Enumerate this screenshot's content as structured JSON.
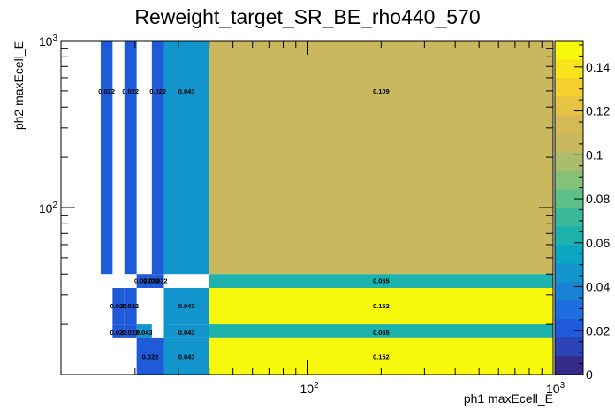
{
  "chart_data": {
    "type": "heatmap",
    "title": "Reweight_target_SR_BE_rho440_570",
    "xlabel": "ph1 maxEcell_E",
    "ylabel": "ph2 maxEcell_E",
    "x_scale": "log",
    "y_scale": "log",
    "xlim": [
      10,
      1000
    ],
    "ylim": [
      10,
      1000
    ],
    "zlim": [
      0,
      0.152
    ],
    "x_ticks": [
      {
        "value": 100,
        "base": "10",
        "exp": "2"
      },
      {
        "value": 1000,
        "base": "10",
        "exp": "3"
      }
    ],
    "y_ticks": [
      {
        "value": 100,
        "base": "10",
        "exp": "2"
      },
      {
        "value": 1000,
        "base": "10",
        "exp": "3"
      }
    ],
    "palette": [
      "#352a87",
      "#2d44b6",
      "#1f5ad8",
      "#1f6ee0",
      "#1a82d4",
      "#1295cd",
      "#0aa6c2",
      "#1eb2ad",
      "#3aba9a",
      "#5fbf89",
      "#86c17a",
      "#aabd6d",
      "#c9b85e",
      "#d5b954",
      "#e6c443",
      "#f4d12f",
      "#f9e31d",
      "#f8f80d"
    ],
    "colorbar_ticks": [
      0,
      0.02,
      0.04,
      0.06,
      0.08,
      0.1,
      0.12,
      0.14
    ],
    "cells": [
      {
        "x": [
          14.5,
          16.2
        ],
        "y": [
          40,
          1000
        ],
        "z": 0.022,
        "label": "0.022",
        "ly": 500
      },
      {
        "x": [
          18.1,
          20.3
        ],
        "y": [
          40,
          1000
        ],
        "z": 0.022,
        "label": "0.022",
        "ly": 500
      },
      {
        "x": [
          23.4,
          26.2
        ],
        "y": [
          40,
          1000
        ],
        "z": 0.022,
        "label": "0.022",
        "ly": 500
      },
      {
        "x": [
          26.2,
          40.0
        ],
        "y": [
          40,
          1000
        ],
        "z": 0.043,
        "label": "0.043",
        "ly": 500
      },
      {
        "x": [
          40.0,
          1000
        ],
        "y": [
          40,
          1000
        ],
        "z": 0.109,
        "label": "0.109",
        "ly": 500
      },
      {
        "x": [
          20.3,
          22.7
        ],
        "y": [
          33,
          40
        ],
        "z": 0.022,
        "label": "0.022",
        "ly": 36.5
      },
      {
        "x": [
          22.7,
          24.0
        ],
        "y": [
          33,
          40
        ],
        "z": 0.022,
        "label": "0.022",
        "ly": 36.5
      },
      {
        "x": [
          24.0,
          26.2
        ],
        "y": [
          33,
          40
        ],
        "z": 0.022,
        "label": "0.022",
        "ly": 36.5
      },
      {
        "x": [
          40.0,
          1000
        ],
        "y": [
          33,
          40
        ],
        "z": 0.065,
        "label": "0.065",
        "ly": 36.5
      },
      {
        "x": [
          16.2,
          18.1
        ],
        "y": [
          20,
          33
        ],
        "z": 0.022,
        "label": "0.022",
        "ly": 25.8
      },
      {
        "x": [
          18.1,
          20.3
        ],
        "y": [
          20,
          33
        ],
        "z": 0.022,
        "label": "0.022",
        "ly": 25.8
      },
      {
        "x": [
          26.2,
          40.0
        ],
        "y": [
          20,
          33
        ],
        "z": 0.043,
        "label": "0.043",
        "ly": 25.8
      },
      {
        "x": [
          40.0,
          1000
        ],
        "y": [
          20,
          33
        ],
        "z": 0.152,
        "label": "0.152",
        "ly": 25.8
      },
      {
        "x": [
          16.2,
          18.1
        ],
        "y": [
          16.5,
          20
        ],
        "z": 0.022,
        "label": "0.022",
        "ly": 18
      },
      {
        "x": [
          18.1,
          20.3
        ],
        "y": [
          16.5,
          20
        ],
        "z": 0.022,
        "label": "0.022",
        "ly": 18
      },
      {
        "x": [
          20.3,
          23.4
        ],
        "y": [
          16.5,
          20
        ],
        "z": 0.043,
        "label": "0.043",
        "ly": 18
      },
      {
        "x": [
          26.2,
          40.0
        ],
        "y": [
          16.5,
          20
        ],
        "z": 0.043,
        "label": "0.043",
        "ly": 18
      },
      {
        "x": [
          40.0,
          1000
        ],
        "y": [
          16.5,
          20
        ],
        "z": 0.065,
        "label": "0.065",
        "ly": 18
      },
      {
        "x": [
          20.3,
          26.2
        ],
        "y": [
          10,
          16.5
        ],
        "z": 0.022,
        "label": "0.022",
        "ly": 12.8
      },
      {
        "x": [
          26.2,
          40.0
        ],
        "y": [
          10,
          16.5
        ],
        "z": 0.043,
        "label": "0.043",
        "ly": 12.8
      },
      {
        "x": [
          40.0,
          1000
        ],
        "y": [
          10,
          16.5
        ],
        "z": 0.152,
        "label": "0.152",
        "ly": 12.8
      }
    ]
  }
}
